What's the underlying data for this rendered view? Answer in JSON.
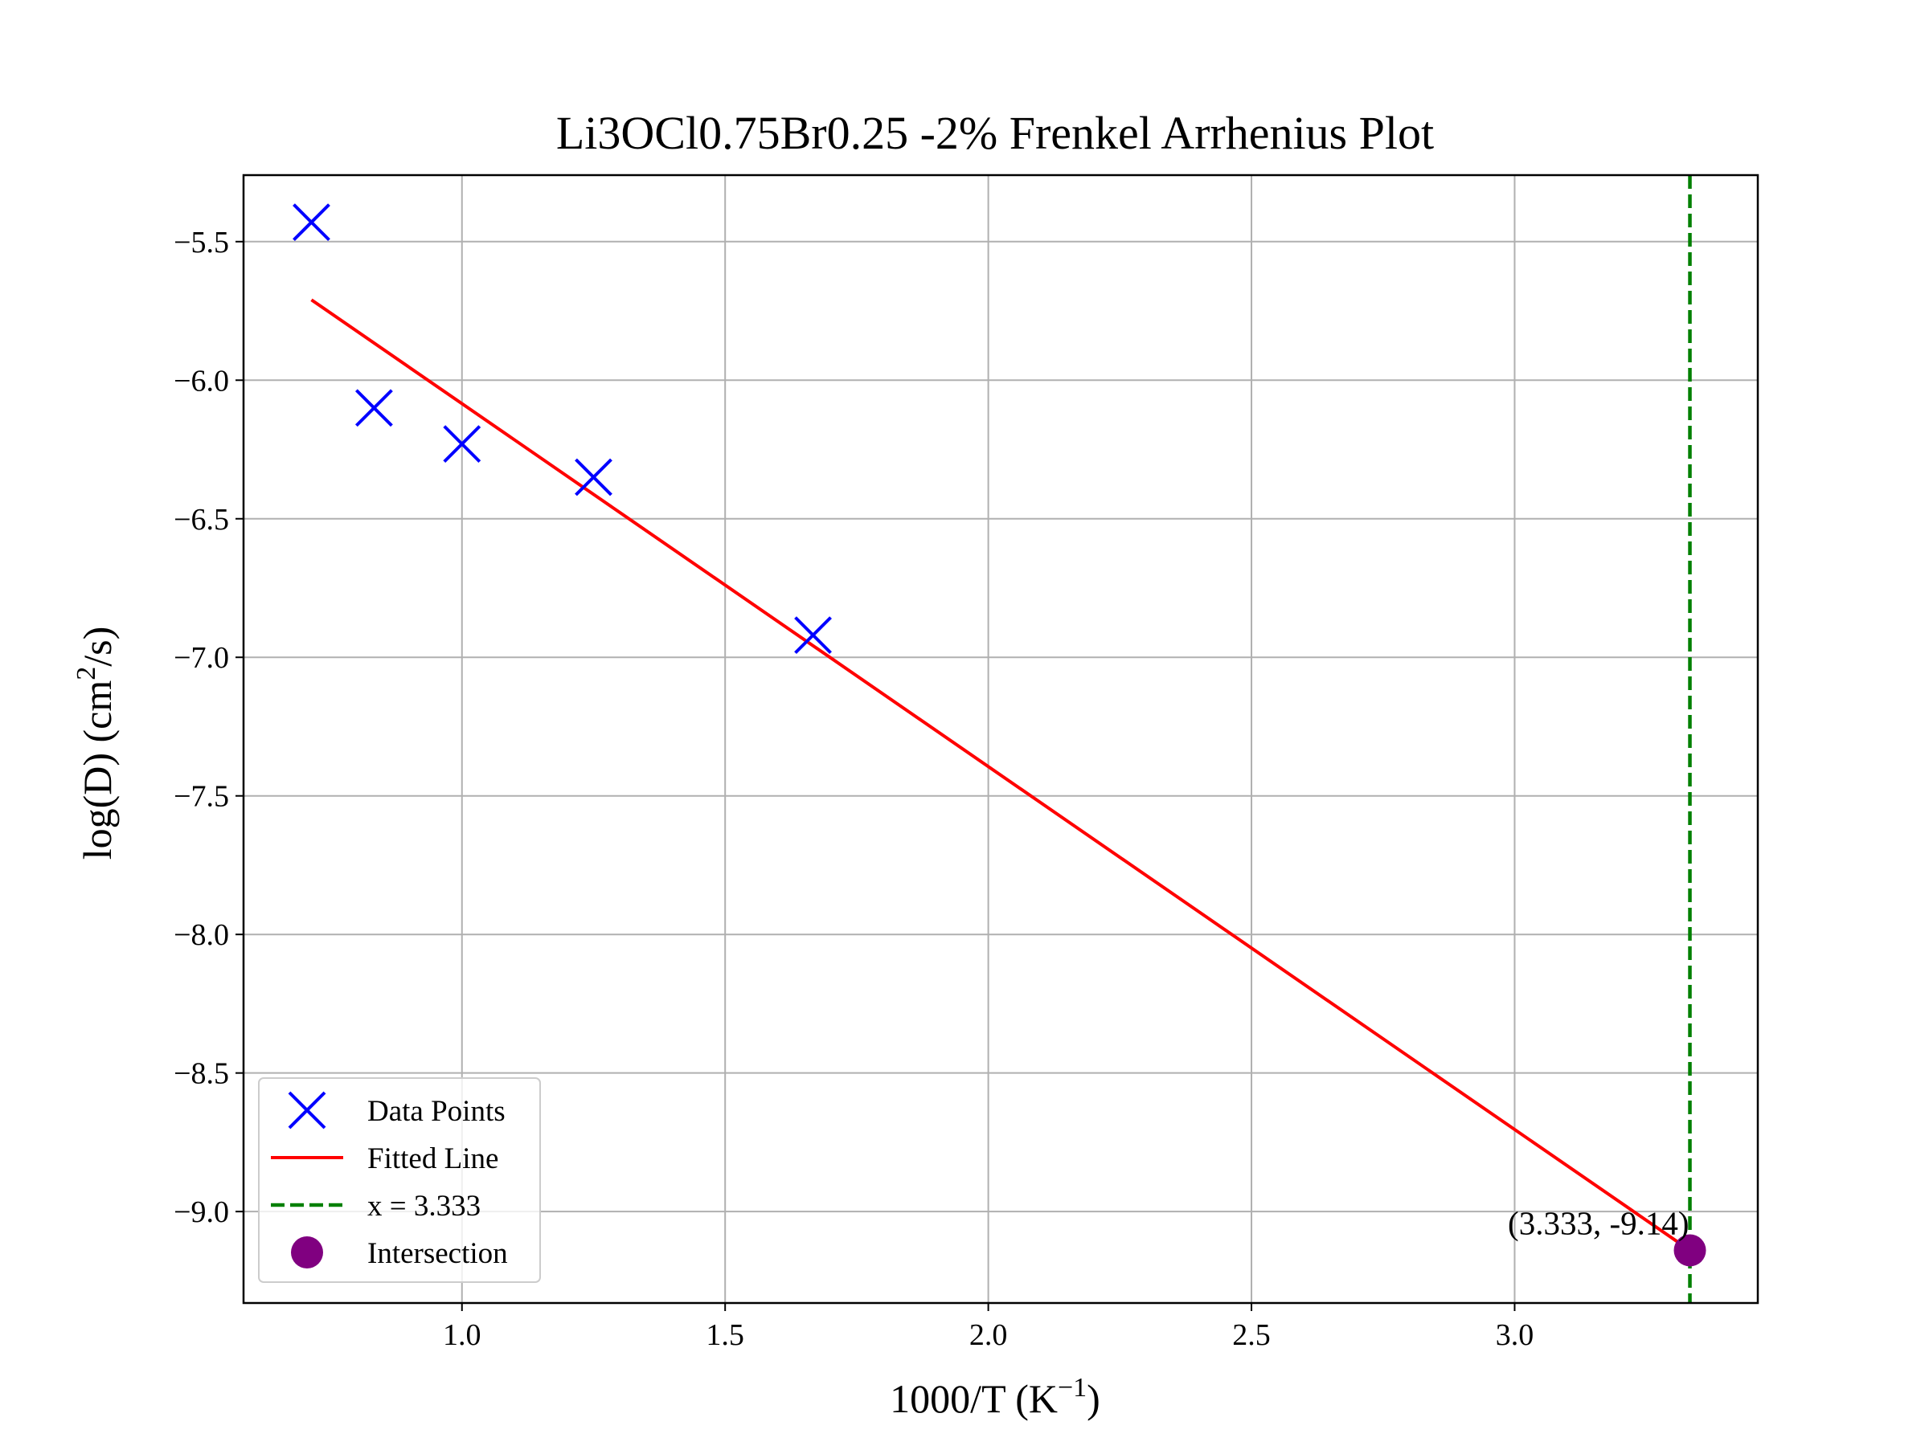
{
  "chart_data": {
    "type": "scatter",
    "title": "Li3OCl0.75Br0.25 -2% Frenkel Arrhenius Plot",
    "xlabel": {
      "base": "1000/T (K",
      "sup": "−1",
      "close": ")"
    },
    "ylabel": {
      "base": "log(D) (cm",
      "sup": "2",
      "close": "/s)"
    },
    "xlim": [
      0.585,
      3.462
    ],
    "ylim": [
      -9.33,
      -5.26
    ],
    "grid": true,
    "legend_position": "lower-left",
    "x_ticks": [
      1.0,
      1.5,
      2.0,
      2.5,
      3.0
    ],
    "x_tick_labels": [
      "1.0",
      "1.5",
      "2.0",
      "2.5",
      "3.0"
    ],
    "y_ticks": [
      -5.5,
      -6.0,
      -6.5,
      -7.0,
      -7.5,
      -8.0,
      -8.5,
      -9.0
    ],
    "y_tick_labels": [
      "−5.5",
      "−6.0",
      "−6.5",
      "−7.0",
      "−7.5",
      "−8.0",
      "−8.5",
      "−9.0"
    ],
    "series": [
      {
        "name": "Data Points",
        "kind": "scatter",
        "marker": "x",
        "color": "#0000ff",
        "points": [
          {
            "x": 0.714,
            "y": -5.43
          },
          {
            "x": 0.833,
            "y": -6.1
          },
          {
            "x": 1.0,
            "y": -6.23
          },
          {
            "x": 1.25,
            "y": -6.35
          },
          {
            "x": 1.667,
            "y": -6.92
          }
        ]
      },
      {
        "name": "Fitted Line",
        "kind": "line",
        "color": "#ff0000",
        "points": [
          {
            "x": 0.714,
            "y": -5.71
          },
          {
            "x": 3.333,
            "y": -9.14
          }
        ]
      },
      {
        "name": "x = 3.333",
        "kind": "vline",
        "color": "#008000",
        "x": 3.333
      },
      {
        "name": "Intersection",
        "kind": "point",
        "color": "#800080",
        "points": [
          {
            "x": 3.333,
            "y": -9.14
          }
        ]
      }
    ],
    "annotation": {
      "text": "(3.333, -9.14)",
      "x": 3.333,
      "y": -9.14
    }
  }
}
